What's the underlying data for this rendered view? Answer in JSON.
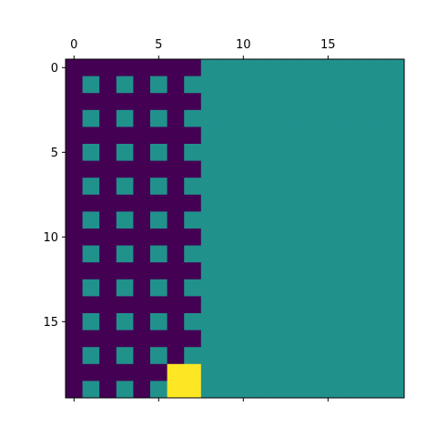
{
  "chart_data": {
    "type": "heatmap",
    "title": "",
    "xlabel": "",
    "ylabel": "",
    "rows": 20,
    "cols": 20,
    "xlim": [
      -0.5,
      19.5
    ],
    "ylim": [
      19.5,
      -0.5
    ],
    "x_axis_position": "top",
    "x_ticks": [
      0,
      5,
      10,
      15
    ],
    "x_tick_labels": [
      "0",
      "5",
      "10",
      "15"
    ],
    "y_ticks": [
      0,
      5,
      10,
      15
    ],
    "y_tick_labels": [
      "0",
      "5",
      "10",
      "15"
    ],
    "colormap": "viridis",
    "value_colors": {
      "0": "#440154",
      "1": "#21918c",
      "2": "#fde725"
    },
    "matrix": [
      [
        0,
        0,
        0,
        0,
        0,
        0,
        0,
        0,
        1,
        1,
        1,
        1,
        1,
        1,
        1,
        1,
        1,
        1,
        1,
        1
      ],
      [
        0,
        1,
        0,
        1,
        0,
        1,
        0,
        1,
        1,
        1,
        1,
        1,
        1,
        1,
        1,
        1,
        1,
        1,
        1,
        1
      ],
      [
        0,
        0,
        0,
        0,
        0,
        0,
        0,
        0,
        1,
        1,
        1,
        1,
        1,
        1,
        1,
        1,
        1,
        1,
        1,
        1
      ],
      [
        0,
        1,
        0,
        1,
        0,
        1,
        0,
        1,
        1,
        1,
        1,
        1,
        1,
        1,
        1,
        1,
        1,
        1,
        1,
        1
      ],
      [
        0,
        0,
        0,
        0,
        0,
        0,
        0,
        0,
        1,
        1,
        1,
        1,
        1,
        1,
        1,
        1,
        1,
        1,
        1,
        1
      ],
      [
        0,
        1,
        0,
        1,
        0,
        1,
        0,
        1,
        1,
        1,
        1,
        1,
        1,
        1,
        1,
        1,
        1,
        1,
        1,
        1
      ],
      [
        0,
        0,
        0,
        0,
        0,
        0,
        0,
        0,
        1,
        1,
        1,
        1,
        1,
        1,
        1,
        1,
        1,
        1,
        1,
        1
      ],
      [
        0,
        1,
        0,
        1,
        0,
        1,
        0,
        1,
        1,
        1,
        1,
        1,
        1,
        1,
        1,
        1,
        1,
        1,
        1,
        1
      ],
      [
        0,
        0,
        0,
        0,
        0,
        0,
        0,
        0,
        1,
        1,
        1,
        1,
        1,
        1,
        1,
        1,
        1,
        1,
        1,
        1
      ],
      [
        0,
        1,
        0,
        1,
        0,
        1,
        0,
        1,
        1,
        1,
        1,
        1,
        1,
        1,
        1,
        1,
        1,
        1,
        1,
        1
      ],
      [
        0,
        0,
        0,
        0,
        0,
        0,
        0,
        0,
        1,
        1,
        1,
        1,
        1,
        1,
        1,
        1,
        1,
        1,
        1,
        1
      ],
      [
        0,
        1,
        0,
        1,
        0,
        1,
        0,
        1,
        1,
        1,
        1,
        1,
        1,
        1,
        1,
        1,
        1,
        1,
        1,
        1
      ],
      [
        0,
        0,
        0,
        0,
        0,
        0,
        0,
        0,
        1,
        1,
        1,
        1,
        1,
        1,
        1,
        1,
        1,
        1,
        1,
        1
      ],
      [
        0,
        1,
        0,
        1,
        0,
        1,
        0,
        1,
        1,
        1,
        1,
        1,
        1,
        1,
        1,
        1,
        1,
        1,
        1,
        1
      ],
      [
        0,
        0,
        0,
        0,
        0,
        0,
        0,
        0,
        1,
        1,
        1,
        1,
        1,
        1,
        1,
        1,
        1,
        1,
        1,
        1
      ],
      [
        0,
        1,
        0,
        1,
        0,
        1,
        0,
        1,
        1,
        1,
        1,
        1,
        1,
        1,
        1,
        1,
        1,
        1,
        1,
        1
      ],
      [
        0,
        0,
        0,
        0,
        0,
        0,
        0,
        0,
        1,
        1,
        1,
        1,
        1,
        1,
        1,
        1,
        1,
        1,
        1,
        1
      ],
      [
        0,
        1,
        0,
        1,
        0,
        1,
        0,
        1,
        1,
        1,
        1,
        1,
        1,
        1,
        1,
        1,
        1,
        1,
        1,
        1
      ],
      [
        0,
        0,
        0,
        0,
        0,
        0,
        2,
        2,
        1,
        1,
        1,
        1,
        1,
        1,
        1,
        1,
        1,
        1,
        1,
        1
      ],
      [
        0,
        1,
        0,
        1,
        0,
        1,
        2,
        2,
        1,
        1,
        1,
        1,
        1,
        1,
        1,
        1,
        1,
        1,
        1,
        1
      ]
    ]
  }
}
